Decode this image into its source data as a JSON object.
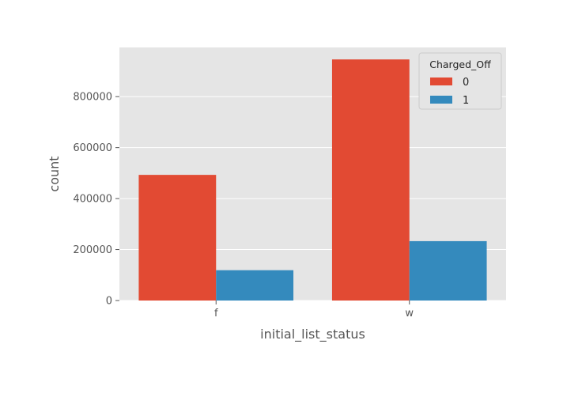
{
  "chart_data": {
    "type": "bar",
    "categories": [
      "f",
      "w"
    ],
    "series": [
      {
        "name": "0",
        "values": [
          493000,
          946000
        ],
        "color": "#E24A33"
      },
      {
        "name": "1",
        "values": [
          119000,
          233000
        ],
        "color": "#348ABD"
      }
    ],
    "xlabel": "initial_list_status",
    "ylabel": "count",
    "ylim": [
      0,
      993000
    ],
    "yticks": [
      0,
      200000,
      400000,
      600000,
      800000
    ],
    "ytick_labels": [
      "0",
      "200000",
      "400000",
      "600000",
      "800000"
    ],
    "legend": {
      "title": "Charged_Off",
      "placement": "top-right"
    },
    "grid": true,
    "style": {
      "background": "#E5E5E5",
      "grid_color": "#FFFFFF"
    }
  }
}
